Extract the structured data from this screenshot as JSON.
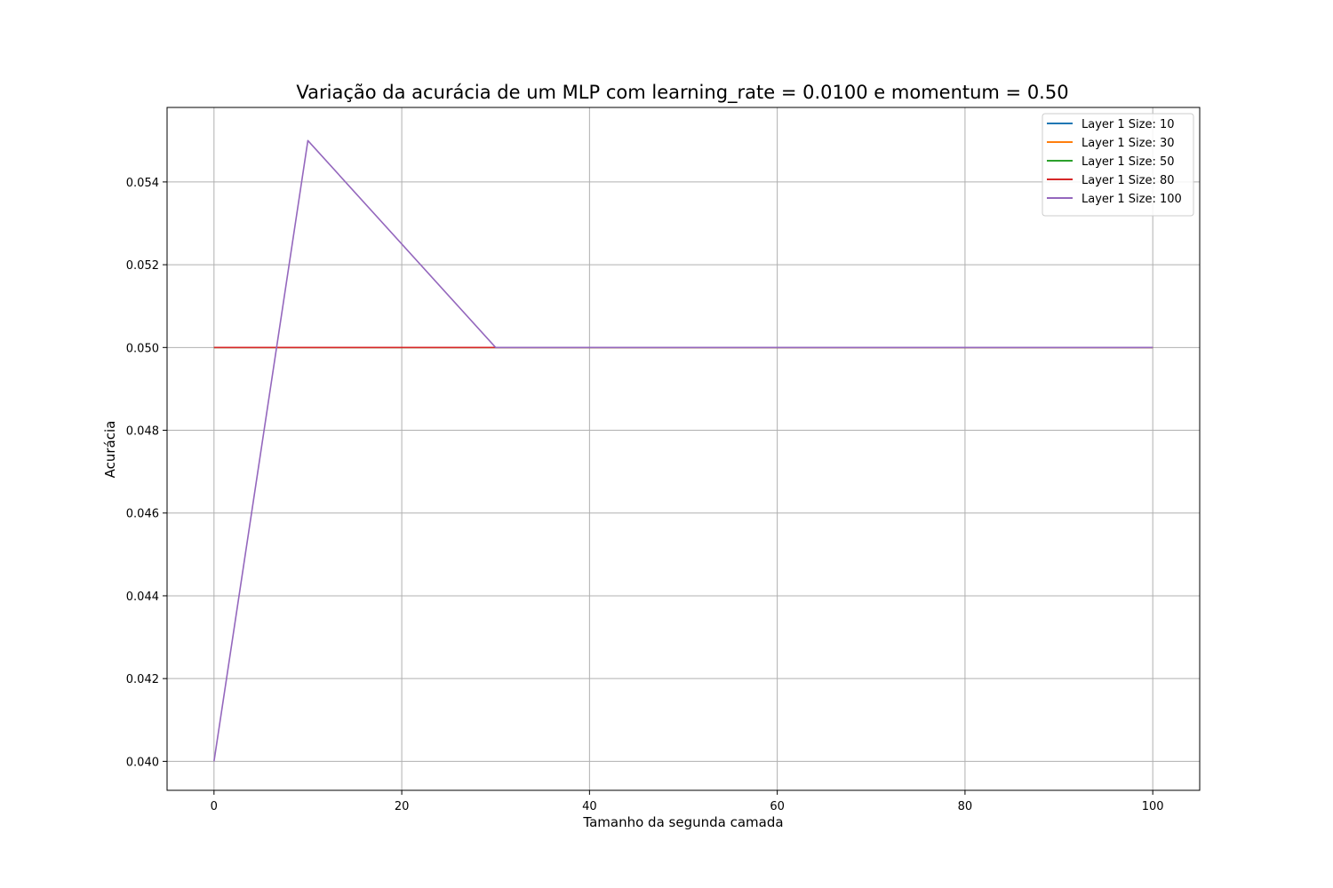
{
  "chart_data": {
    "type": "line",
    "title": "Variação da acurácia de um MLP com learning_rate = 0.0100 e momentum = 0.50",
    "xlabel": "Tamanho da segunda camada",
    "ylabel": "Acurácia",
    "xlim": [
      -5,
      105
    ],
    "ylim": [
      0.0393,
      0.0558
    ],
    "xticks": [
      0,
      20,
      40,
      60,
      80,
      100
    ],
    "xtick_labels": [
      "0",
      "20",
      "40",
      "60",
      "80",
      "100"
    ],
    "yticks": [
      0.04,
      0.042,
      0.044,
      0.046,
      0.048,
      0.05,
      0.052,
      0.054
    ],
    "ytick_labels": [
      "0.040",
      "0.042",
      "0.044",
      "0.046",
      "0.048",
      "0.050",
      "0.052",
      "0.054"
    ],
    "grid": true,
    "legend_position": "top-right",
    "x": [
      0,
      10,
      30,
      50,
      80,
      100
    ],
    "series": [
      {
        "name": "Layer 1 Size: 10",
        "color": "#1f77b4",
        "values": [
          0.05,
          0.05,
          0.05,
          0.05,
          0.05,
          0.05
        ]
      },
      {
        "name": "Layer 1 Size: 30",
        "color": "#ff7f0e",
        "values": [
          0.05,
          0.05,
          0.05,
          0.05,
          0.05,
          0.05
        ]
      },
      {
        "name": "Layer 1 Size: 50",
        "color": "#2ca02c",
        "values": [
          0.05,
          0.05,
          0.05,
          0.05,
          0.05,
          0.05
        ]
      },
      {
        "name": "Layer 1 Size: 80",
        "color": "#d62728",
        "values": [
          0.05,
          0.05,
          0.05,
          0.05,
          0.05,
          0.05
        ]
      },
      {
        "name": "Layer 1 Size: 100",
        "color": "#9467bd",
        "values": [
          0.04,
          0.055,
          0.05,
          0.05,
          0.05,
          0.05
        ]
      }
    ]
  }
}
